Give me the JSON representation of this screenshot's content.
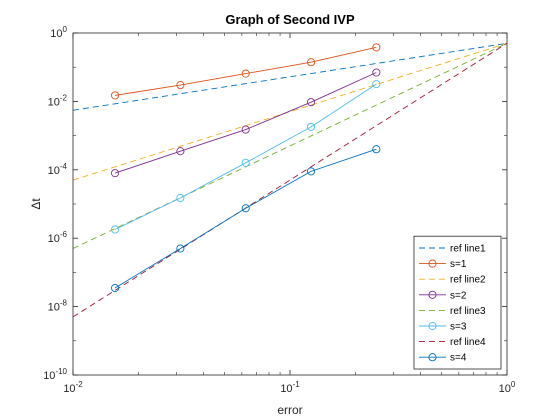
{
  "chart_data": {
    "type": "line",
    "title": "Graph of Second IVP",
    "xlabel": "error",
    "ylabel": "Δt",
    "x_scale": "log",
    "y_scale": "log",
    "xlim": [
      0.01,
      1
    ],
    "ylim": [
      1e-10,
      1
    ],
    "grid": false,
    "legend_position": "bottom-right",
    "x_ticks": [
      {
        "value": 0.01,
        "base": "10",
        "exp": "-2"
      },
      {
        "value": 0.1,
        "base": "10",
        "exp": "-1"
      },
      {
        "value": 1,
        "base": "10",
        "exp": "0"
      }
    ],
    "y_ticks": [
      {
        "value": 1,
        "base": "10",
        "exp": "0"
      },
      {
        "value": 0.01,
        "base": "10",
        "exp": "-2"
      },
      {
        "value": 0.0001,
        "base": "10",
        "exp": "-4"
      },
      {
        "value": 1e-06,
        "base": "10",
        "exp": "-6"
      },
      {
        "value": 1e-08,
        "base": "10",
        "exp": "-8"
      },
      {
        "value": 1e-10,
        "base": "10",
        "exp": "-10"
      }
    ],
    "series": [
      {
        "name": "ref line1",
        "style": "dashed",
        "marker": "none",
        "color": "#0072BD",
        "x": [
          0.01,
          1
        ],
        "y": [
          0.0055,
          0.5
        ]
      },
      {
        "name": "s=1",
        "style": "solid",
        "marker": "circle",
        "color": "#D95319",
        "x": [
          0.015625,
          0.03125,
          0.0625,
          0.125,
          0.25
        ],
        "y": [
          0.015,
          0.03,
          0.065,
          0.14,
          0.38
        ]
      },
      {
        "name": "ref line2",
        "style": "dashed",
        "marker": "none",
        "color": "#EDB120",
        "x": [
          0.01,
          1
        ],
        "y": [
          5e-05,
          0.5
        ]
      },
      {
        "name": "s=2",
        "style": "solid",
        "marker": "circle",
        "color": "#7E2F8E",
        "x": [
          0.015625,
          0.03125,
          0.0625,
          0.125,
          0.25
        ],
        "y": [
          8e-05,
          0.00035,
          0.0015,
          0.0095,
          0.07
        ]
      },
      {
        "name": "ref line3",
        "style": "dashed",
        "marker": "none",
        "color": "#77AC30",
        "x": [
          0.01,
          1
        ],
        "y": [
          5e-07,
          0.5
        ]
      },
      {
        "name": "s=3",
        "style": "solid",
        "marker": "circle",
        "color": "#4DBEEE",
        "x": [
          0.015625,
          0.03125,
          0.0625,
          0.125,
          0.25
        ],
        "y": [
          1.8e-06,
          1.5e-05,
          0.00016,
          0.0018,
          0.032
        ]
      },
      {
        "name": "ref line4",
        "style": "dashed",
        "marker": "none",
        "color": "#A2142F",
        "x": [
          0.01,
          1
        ],
        "y": [
          5e-09,
          0.5
        ]
      },
      {
        "name": "s=4",
        "style": "solid",
        "marker": "circle",
        "color": "#0072BD",
        "x": [
          0.015625,
          0.03125,
          0.0625,
          0.125,
          0.25
        ],
        "y": [
          3.5e-08,
          5e-07,
          7.5e-06,
          9e-05,
          0.0004
        ]
      }
    ]
  }
}
